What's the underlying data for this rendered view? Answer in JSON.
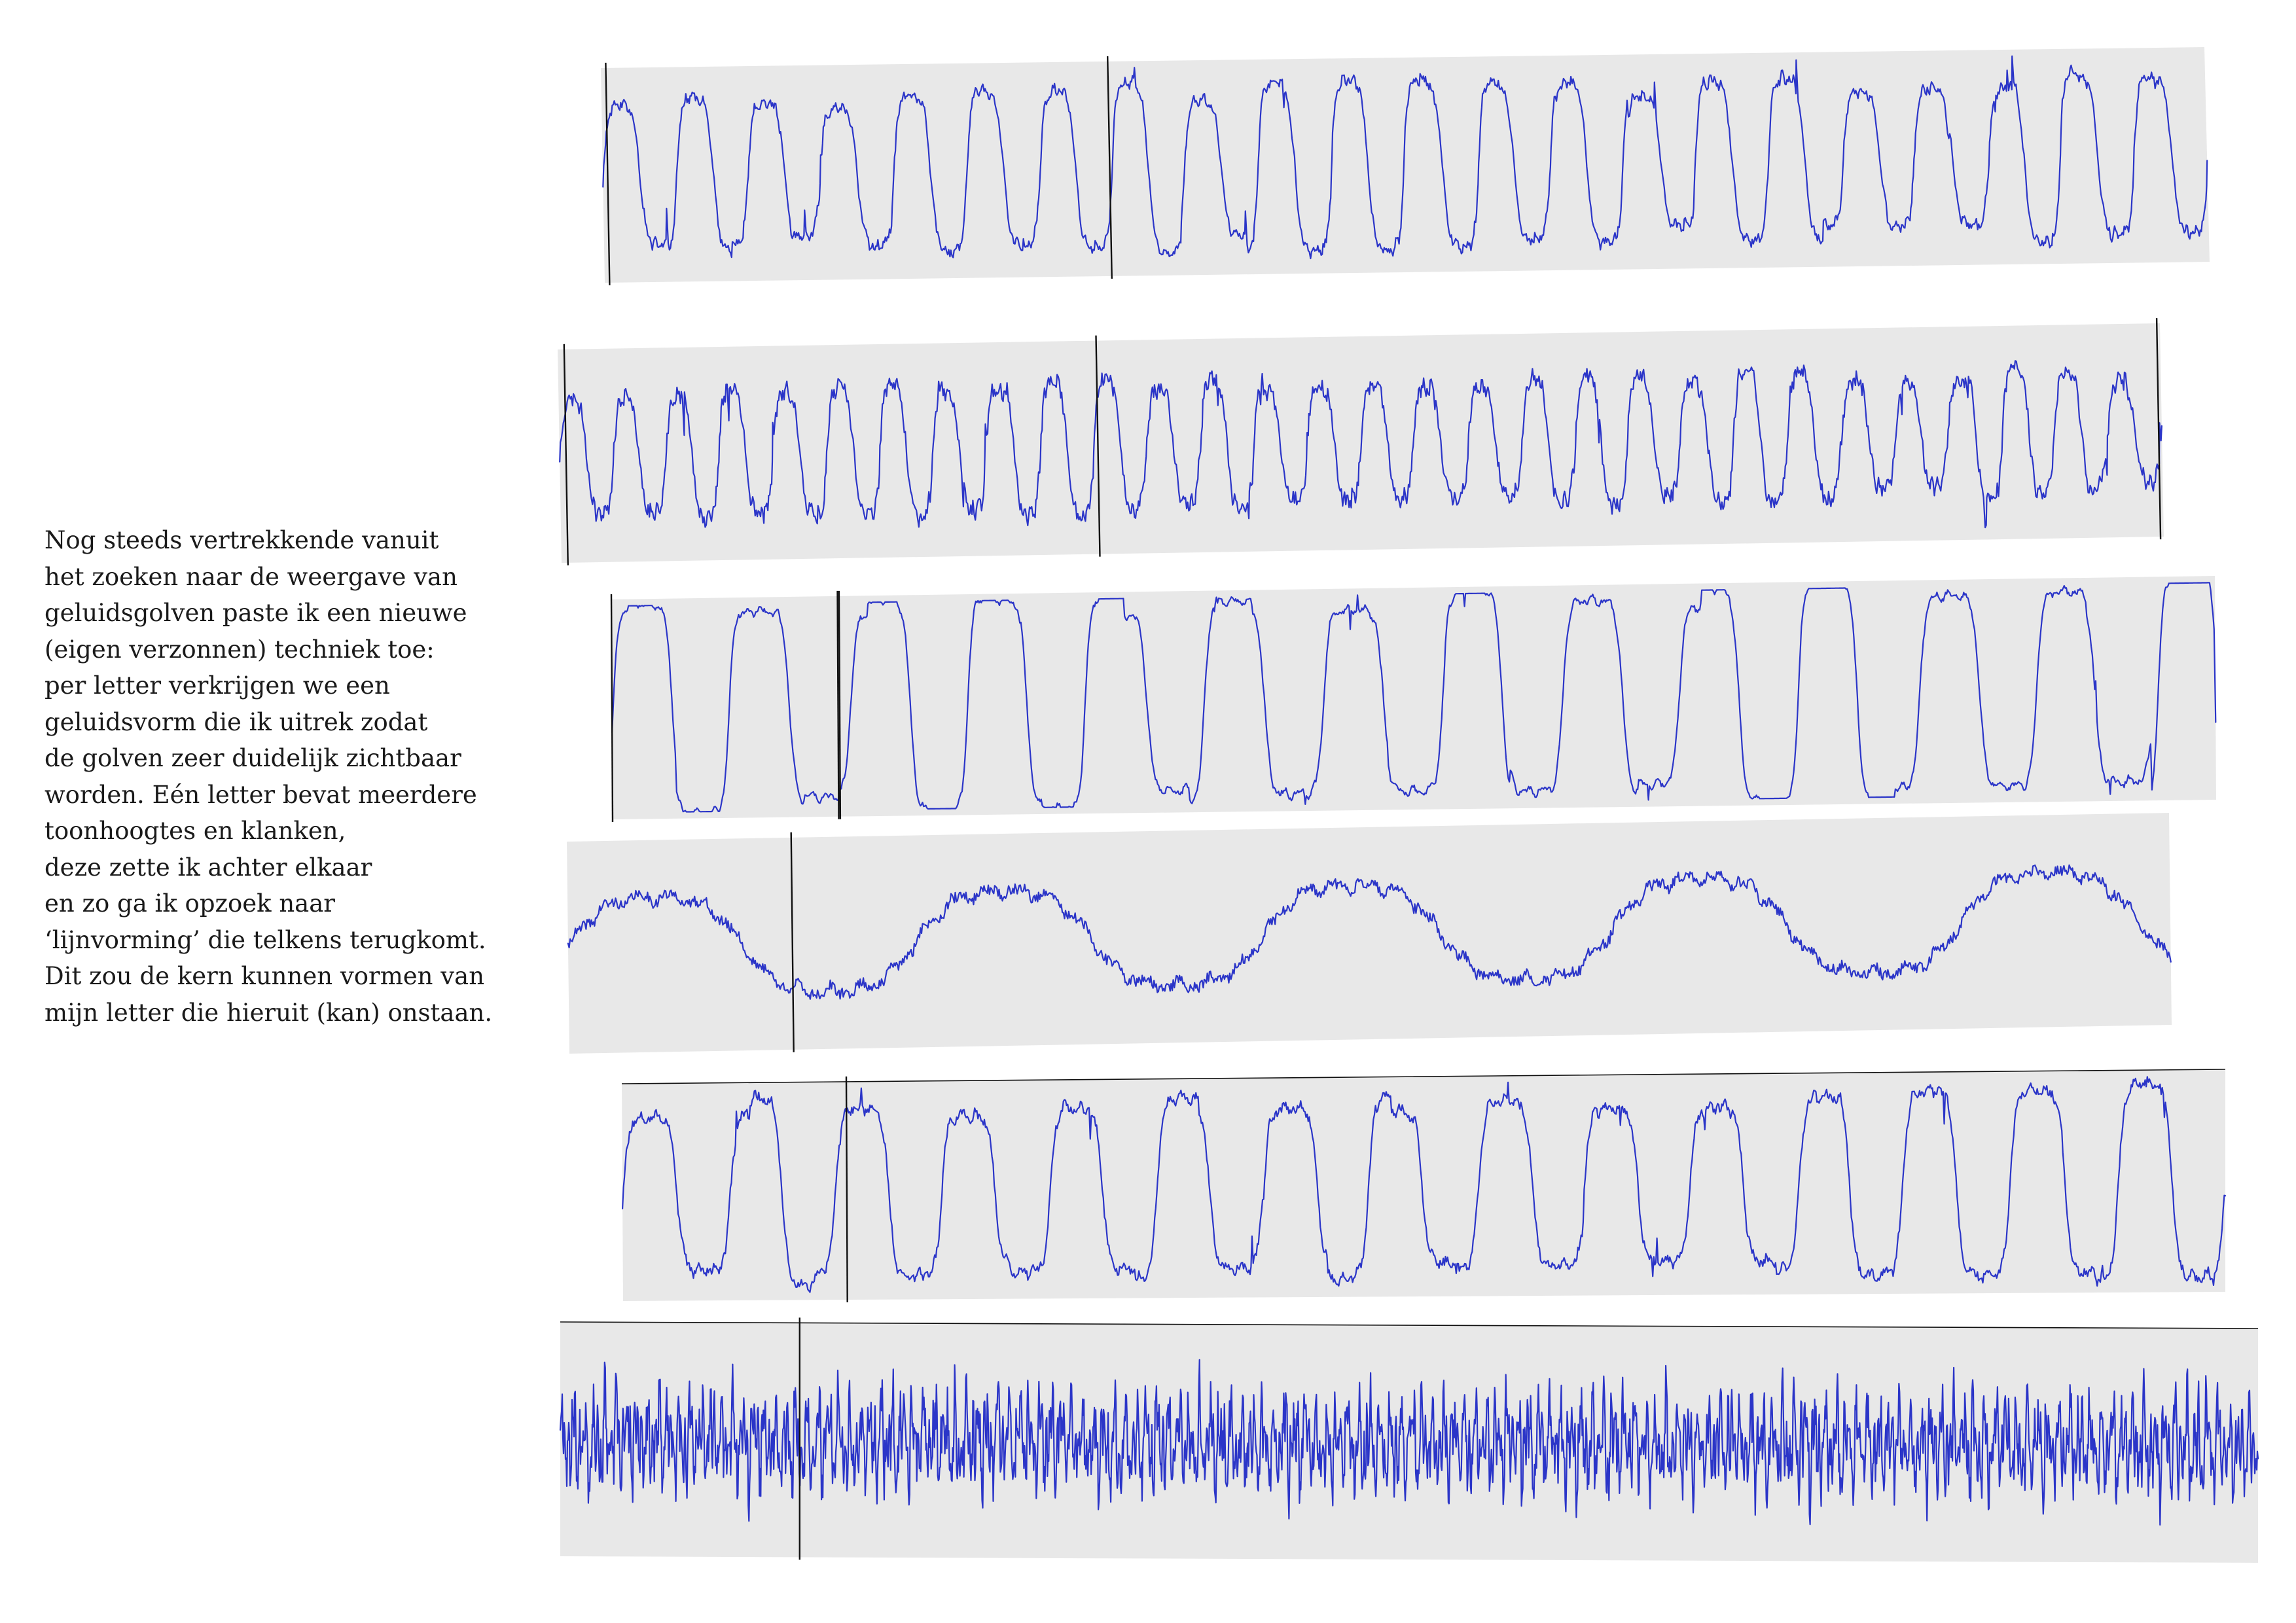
{
  "description": {
    "lines": [
      "Nog steeds vertrekkende vanuit",
      "het zoeken naar de weergave van",
      "geluidsgolven paste ik een nieuwe",
      "(eigen verzonnen) techniek toe:",
      "per letter verkrijgen we een",
      "geluidsvorm die ik uitrek zodat",
      "de golven zeer duidelijk zichtbaar",
      "worden. Eén letter bevat meerdere",
      "toonhoogtes en klanken,",
      "deze zette ik achter elkaar",
      "en zo ga ik opzoek naar",
      "‘lijnvorming’ die telkens terugkomt.",
      "Dit zou de kern kunnen vormen van",
      "mijn letter die hieruit (kan) onstaan."
    ]
  },
  "colors": {
    "panel": "#e8e8e8",
    "wave": "#2b35c8",
    "marker": "#111111",
    "text": "#1a1a1a"
  }
}
